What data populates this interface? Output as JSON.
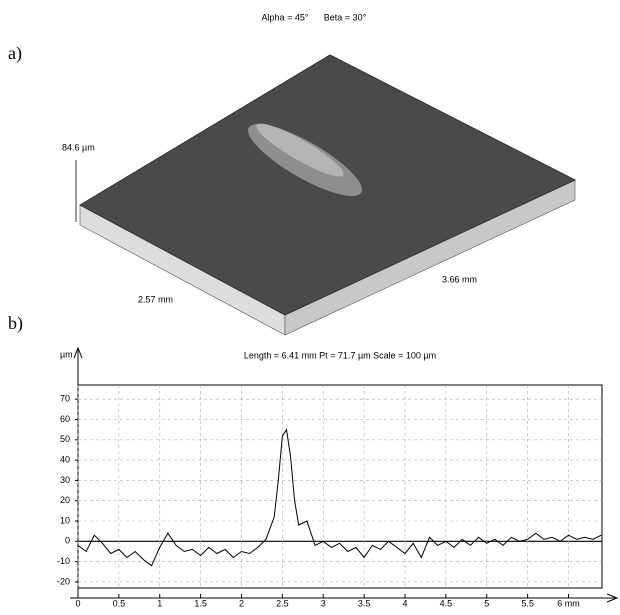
{
  "figure": {
    "alpha": "Alpha = 45°",
    "beta": "Beta = 30°",
    "panel_a": {
      "label": "a)",
      "z_label": "84.6 µm",
      "x_label": "2.57 mm",
      "y_label": "3.66 mm"
    },
    "panel_b": {
      "label": "b)"
    }
  },
  "chart_data": {
    "type": "line",
    "title": "Length = 6.41 mm  Pt = 71.7 µm  Scale = 100 µm",
    "y_label": "µm",
    "x": [
      0,
      0.1,
      0.2,
      0.3,
      0.4,
      0.5,
      0.6,
      0.7,
      0.8,
      0.9,
      1.0,
      1.1,
      1.2,
      1.3,
      1.4,
      1.5,
      1.6,
      1.7,
      1.8,
      1.9,
      2.0,
      2.1,
      2.2,
      2.3,
      2.4,
      2.45,
      2.5,
      2.55,
      2.6,
      2.65,
      2.7,
      2.8,
      2.9,
      3.0,
      3.1,
      3.2,
      3.3,
      3.4,
      3.5,
      3.6,
      3.7,
      3.8,
      3.9,
      4.0,
      4.1,
      4.2,
      4.3,
      4.4,
      4.5,
      4.6,
      4.7,
      4.8,
      4.9,
      5.0,
      5.1,
      5.2,
      5.3,
      5.4,
      5.5,
      5.6,
      5.7,
      5.8,
      5.9,
      6.0,
      6.1,
      6.2,
      6.3,
      6.4
    ],
    "series": [
      {
        "color": "#000000",
        "values": [
          -2,
          -5,
          3,
          -1,
          -6,
          -4,
          -8,
          -5,
          -9,
          -12,
          -3,
          4,
          -2,
          -5,
          -4,
          -7,
          -3,
          -6,
          -4,
          -8,
          -5,
          -6,
          -3,
          1,
          12,
          30,
          52,
          55,
          42,
          20,
          8,
          10,
          -2,
          0,
          -3,
          -1,
          -5,
          -3,
          -8,
          -2,
          -4,
          0,
          -3,
          -6,
          -1,
          -8,
          2,
          -2,
          0,
          -3,
          1,
          -2,
          2,
          -1,
          1,
          -2,
          2,
          0,
          1,
          4,
          1,
          2,
          0,
          3,
          1,
          2,
          1,
          3
        ]
      }
    ],
    "xlim": [
      0,
      6.41
    ],
    "ylim": [
      -23,
      77
    ],
    "xticks": [
      0,
      0.5,
      1,
      1.5,
      2,
      2.5,
      3,
      3.5,
      4,
      4.5,
      5,
      5.5,
      {
        "value": 6,
        "label": "6 mm"
      }
    ],
    "yticks": [
      -20,
      -10,
      0,
      10,
      20,
      30,
      40,
      50,
      60,
      70
    ],
    "grid": true
  }
}
